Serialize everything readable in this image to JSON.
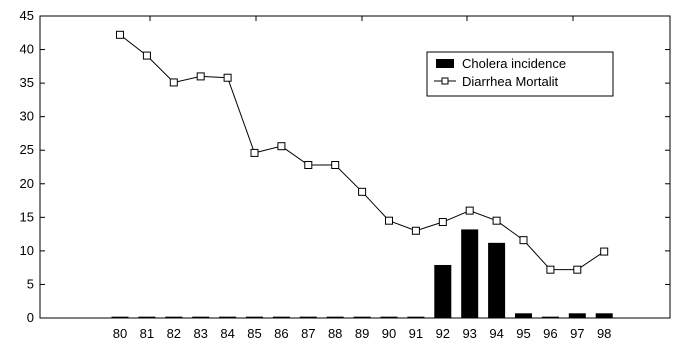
{
  "chart_data": {
    "type": "bar",
    "categories": [
      "80",
      "81",
      "82",
      "83",
      "84",
      "85",
      "86",
      "87",
      "88",
      "89",
      "90",
      "91",
      "92",
      "93",
      "94",
      "95",
      "96",
      "97",
      "98"
    ],
    "series": [
      {
        "name": "Cholera incidence",
        "type": "bar",
        "color": "#000000",
        "values": [
          0.2,
          0.2,
          0.2,
          0.2,
          0.2,
          0.2,
          0.2,
          0.2,
          0.2,
          0.2,
          0.2,
          0.2,
          7.9,
          13.2,
          11.2,
          0.7,
          0.2,
          0.7,
          0.7
        ]
      },
      {
        "name": "Diarrhea Mortalit",
        "type": "line",
        "marker": "open-square",
        "color": "#000000",
        "values": [
          42.2,
          39.1,
          35.1,
          36.0,
          35.8,
          24.6,
          25.6,
          22.8,
          22.8,
          18.8,
          14.5,
          13.0,
          14.3,
          16.0,
          14.5,
          11.6,
          7.2,
          7.2,
          9.9
        ]
      }
    ],
    "y_ticks": [
      "0",
      "5",
      "10",
      "15",
      "20",
      "25",
      "30",
      "35",
      "40",
      "45"
    ],
    "ylim": [
      0,
      45
    ],
    "legend_position": "top-right",
    "grid": false
  }
}
